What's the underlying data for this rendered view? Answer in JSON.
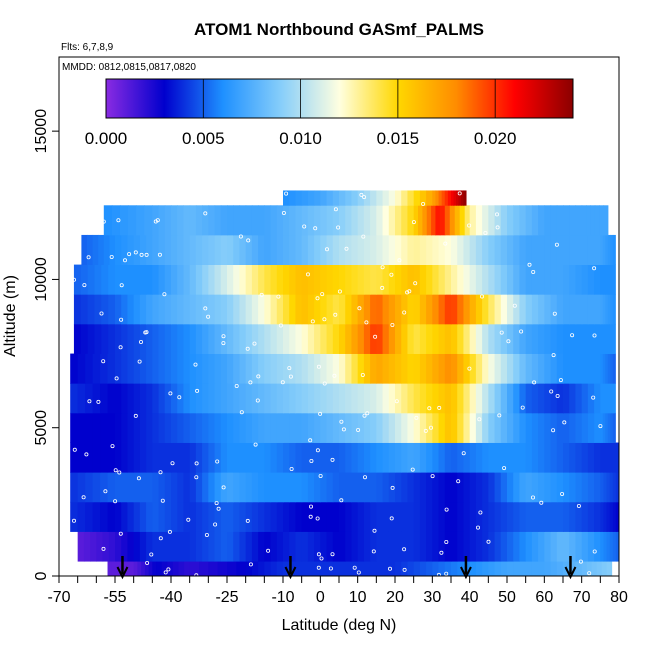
{
  "chart_data": {
    "type": "heatmap",
    "title": "ATOM1 Northbound GASmf_PALMS",
    "subtitle_flights": "Flts: 6,7,8,9",
    "subtitle_dates": "MMDD: 0812,0815,0817,0820",
    "xlabel": "Latitude (deg N)",
    "ylabel": "Altitude (m)",
    "xlim": [
      -70,
      80
    ],
    "ylim": [
      0,
      17500
    ],
    "x_ticks": [
      "-70",
      "-55",
      "-40",
      "-25",
      "-10",
      "0",
      "10",
      "20",
      "30",
      "40",
      "50",
      "60",
      "70",
      "80"
    ],
    "x_tick_values": [
      -70,
      -55,
      -40,
      -25,
      -10,
      0,
      10,
      20,
      30,
      40,
      50,
      60,
      70,
      80
    ],
    "x_minor_ticks": [
      -65,
      -60,
      -50,
      -45,
      -35,
      -30,
      -20,
      -15,
      -5,
      5,
      15,
      25,
      35,
      45,
      55,
      65,
      75
    ],
    "y_ticks": [
      "0",
      "5000",
      "10000",
      "15000"
    ],
    "y_tick_values": [
      0,
      5000,
      10000,
      15000
    ],
    "colorbar": {
      "min": 0.0,
      "max": 0.024,
      "tick_labels": [
        "0.000",
        "0.005",
        "0.010",
        "0.015",
        "0.020"
      ],
      "tick_values": [
        0.0,
        0.005,
        0.01,
        0.015,
        0.02
      ],
      "colors": [
        "#8a2be2",
        "#0000cd",
        "#1e90ff",
        "#87cefa",
        "#ffffe0",
        "#ffd700",
        "#ff8c00",
        "#ff0000",
        "#8b0000"
      ]
    },
    "flight_arrows_latitude": [
      -53,
      -8,
      39,
      67
    ],
    "altitude_bands": [
      {
        "alt": [
          0,
          500
        ],
        "lat": [
          -57,
          78
        ],
        "values": [
          [
            -57,
            0.001
          ],
          [
            -50,
            0.001
          ],
          [
            -44,
            0.003
          ],
          [
            -35,
            0.002
          ],
          [
            -20,
            0.003
          ],
          [
            -10,
            0.004
          ],
          [
            0,
            0.004
          ],
          [
            10,
            0.004
          ],
          [
            20,
            0.004
          ],
          [
            30,
            0.005
          ],
          [
            40,
            0.006
          ],
          [
            50,
            0.007
          ],
          [
            60,
            0.007
          ],
          [
            70,
            0.008
          ],
          [
            78,
            0.009
          ]
        ]
      },
      {
        "alt": [
          500,
          1500
        ],
        "lat": [
          -65,
          80
        ],
        "values": [
          [
            -65,
            0.001
          ],
          [
            -55,
            0.002
          ],
          [
            -45,
            0.004
          ],
          [
            -35,
            0.004
          ],
          [
            -25,
            0.005
          ],
          [
            -15,
            0.003
          ],
          [
            -5,
            0.004
          ],
          [
            5,
            0.003
          ],
          [
            15,
            0.004
          ],
          [
            25,
            0.004
          ],
          [
            35,
            0.003
          ],
          [
            45,
            0.004
          ],
          [
            55,
            0.006
          ],
          [
            65,
            0.008
          ],
          [
            75,
            0.006
          ],
          [
            80,
            0.005
          ]
        ]
      },
      {
        "alt": [
          1500,
          2500
        ],
        "lat": [
          -67,
          80
        ],
        "values": [
          [
            -67,
            0.004
          ],
          [
            -55,
            0.003
          ],
          [
            -45,
            0.005
          ],
          [
            -35,
            0.004
          ],
          [
            -25,
            0.005
          ],
          [
            -15,
            0.004
          ],
          [
            -5,
            0.003
          ],
          [
            5,
            0.003
          ],
          [
            15,
            0.004
          ],
          [
            25,
            0.004
          ],
          [
            35,
            0.003
          ],
          [
            45,
            0.004
          ],
          [
            55,
            0.005
          ],
          [
            65,
            0.005
          ],
          [
            75,
            0.004
          ],
          [
            80,
            0.003
          ]
        ]
      },
      {
        "alt": [
          2500,
          3500
        ],
        "lat": [
          -67,
          80
        ],
        "values": [
          [
            -67,
            0.004
          ],
          [
            -55,
            0.005
          ],
          [
            -45,
            0.005
          ],
          [
            -35,
            0.004
          ],
          [
            -25,
            0.007
          ],
          [
            -15,
            0.006
          ],
          [
            -5,
            0.006
          ],
          [
            5,
            0.005
          ],
          [
            15,
            0.005
          ],
          [
            25,
            0.004
          ],
          [
            35,
            0.003
          ],
          [
            45,
            0.004
          ],
          [
            55,
            0.007
          ],
          [
            65,
            0.006
          ],
          [
            75,
            0.005
          ],
          [
            80,
            0.004
          ]
        ]
      },
      {
        "alt": [
          3500,
          4500
        ],
        "lat": [
          -67,
          80
        ],
        "values": [
          [
            -67,
            0.003
          ],
          [
            -55,
            0.003
          ],
          [
            -45,
            0.004
          ],
          [
            -35,
            0.004
          ],
          [
            -25,
            0.006
          ],
          [
            -15,
            0.006
          ],
          [
            -5,
            0.005
          ],
          [
            5,
            0.005
          ],
          [
            15,
            0.006
          ],
          [
            25,
            0.007
          ],
          [
            35,
            0.005
          ],
          [
            45,
            0.006
          ],
          [
            55,
            0.006
          ],
          [
            65,
            0.005
          ],
          [
            75,
            0.004
          ],
          [
            80,
            0.004
          ]
        ]
      },
      {
        "alt": [
          4500,
          5500
        ],
        "lat": [
          -67,
          79
        ],
        "values": [
          [
            -67,
            0.003
          ],
          [
            -55,
            0.003
          ],
          [
            -45,
            0.004
          ],
          [
            -35,
            0.005
          ],
          [
            -25,
            0.006
          ],
          [
            -15,
            0.007
          ],
          [
            -5,
            0.007
          ],
          [
            5,
            0.008
          ],
          [
            15,
            0.009
          ],
          [
            25,
            0.012
          ],
          [
            35,
            0.016
          ],
          [
            45,
            0.009
          ],
          [
            55,
            0.006
          ],
          [
            65,
            0.005
          ],
          [
            75,
            0.006
          ],
          [
            79,
            0.005
          ]
        ]
      },
      {
        "alt": [
          5500,
          6500
        ],
        "lat": [
          -67,
          79
        ],
        "values": [
          [
            -67,
            0.004
          ],
          [
            -55,
            0.003
          ],
          [
            -45,
            0.004
          ],
          [
            -35,
            0.006
          ],
          [
            -25,
            0.007
          ],
          [
            -15,
            0.008
          ],
          [
            -5,
            0.009
          ],
          [
            5,
            0.01
          ],
          [
            15,
            0.011
          ],
          [
            25,
            0.014
          ],
          [
            35,
            0.016
          ],
          [
            45,
            0.01
          ],
          [
            55,
            0.005
          ],
          [
            65,
            0.004
          ],
          [
            75,
            0.006
          ],
          [
            79,
            0.006
          ]
        ]
      },
      {
        "alt": [
          6500,
          7500
        ],
        "lat": [
          -67,
          79
        ],
        "values": [
          [
            -67,
            0.003
          ],
          [
            -55,
            0.004
          ],
          [
            -45,
            0.005
          ],
          [
            -35,
            0.006
          ],
          [
            -25,
            0.007
          ],
          [
            -15,
            0.009
          ],
          [
            -5,
            0.01
          ],
          [
            5,
            0.012
          ],
          [
            15,
            0.017
          ],
          [
            25,
            0.015
          ],
          [
            35,
            0.018
          ],
          [
            45,
            0.012
          ],
          [
            55,
            0.008
          ],
          [
            65,
            0.006
          ],
          [
            75,
            0.006
          ],
          [
            79,
            0.005
          ]
        ]
      },
      {
        "alt": [
          7500,
          8500
        ],
        "lat": [
          -66,
          79
        ],
        "values": [
          [
            -66,
            0.003
          ],
          [
            -55,
            0.004
          ],
          [
            -45,
            0.005
          ],
          [
            -35,
            0.006
          ],
          [
            -25,
            0.008
          ],
          [
            -15,
            0.01
          ],
          [
            -5,
            0.012
          ],
          [
            5,
            0.015
          ],
          [
            15,
            0.02
          ],
          [
            25,
            0.014
          ],
          [
            35,
            0.016
          ],
          [
            45,
            0.01
          ],
          [
            55,
            0.007
          ],
          [
            65,
            0.006
          ],
          [
            75,
            0.006
          ],
          [
            79,
            0.006
          ]
        ]
      },
      {
        "alt": [
          8500,
          9500
        ],
        "lat": [
          -66,
          79
        ],
        "values": [
          [
            -66,
            0.004
          ],
          [
            -55,
            0.005
          ],
          [
            -45,
            0.007
          ],
          [
            -35,
            0.008
          ],
          [
            -25,
            0.009
          ],
          [
            -15,
            0.012
          ],
          [
            -5,
            0.016
          ],
          [
            5,
            0.014
          ],
          [
            15,
            0.019
          ],
          [
            25,
            0.015
          ],
          [
            35,
            0.02
          ],
          [
            45,
            0.014
          ],
          [
            55,
            0.009
          ],
          [
            65,
            0.007
          ],
          [
            75,
            0.007
          ],
          [
            79,
            0.006
          ]
        ]
      },
      {
        "alt": [
          9500,
          10500
        ],
        "lat": [
          -66,
          79
        ],
        "values": [
          [
            -66,
            0.005
          ],
          [
            -55,
            0.006
          ],
          [
            -45,
            0.006
          ],
          [
            -35,
            0.008
          ],
          [
            -25,
            0.011
          ],
          [
            -15,
            0.014
          ],
          [
            -5,
            0.016
          ],
          [
            5,
            0.015
          ],
          [
            15,
            0.014
          ],
          [
            25,
            0.016
          ],
          [
            35,
            0.013
          ],
          [
            45,
            0.01
          ],
          [
            55,
            0.007
          ],
          [
            65,
            0.007
          ],
          [
            75,
            0.006
          ],
          [
            79,
            0.006
          ]
        ]
      },
      {
        "alt": [
          10500,
          11500
        ],
        "lat": [
          -64,
          79
        ],
        "values": [
          [
            -64,
            0.005
          ],
          [
            -55,
            0.006
          ],
          [
            -45,
            0.007
          ],
          [
            -35,
            0.008
          ],
          [
            -25,
            0.009
          ],
          [
            -15,
            0.007
          ],
          [
            -5,
            0.008
          ],
          [
            5,
            0.01
          ],
          [
            15,
            0.011
          ],
          [
            25,
            0.013
          ],
          [
            35,
            0.012
          ],
          [
            45,
            0.009
          ],
          [
            55,
            0.007
          ],
          [
            65,
            0.007
          ],
          [
            75,
            0.007
          ],
          [
            79,
            0.006
          ]
        ]
      },
      {
        "alt": [
          11500,
          12500
        ],
        "lat": [
          -58,
          77
        ],
        "values": [
          [
            -58,
            0.006
          ],
          [
            -45,
            0.007
          ],
          [
            -35,
            0.008
          ],
          [
            -25,
            0.007
          ],
          [
            -15,
            0.007
          ],
          [
            -5,
            0.008
          ],
          [
            5,
            0.009
          ],
          [
            15,
            0.011
          ],
          [
            25,
            0.015
          ],
          [
            32,
            0.021
          ],
          [
            40,
            0.013
          ],
          [
            50,
            0.009
          ],
          [
            60,
            0.007
          ],
          [
            70,
            0.007
          ],
          [
            77,
            0.007
          ]
        ]
      },
      {
        "alt": [
          12500,
          13000
        ],
        "lat": [
          -10,
          39
        ],
        "values": [
          [
            -10,
            0.006
          ],
          [
            0,
            0.007
          ],
          [
            10,
            0.009
          ],
          [
            20,
            0.012
          ],
          [
            30,
            0.017
          ],
          [
            35,
            0.021
          ],
          [
            39,
            0.024
          ]
        ]
      }
    ]
  }
}
